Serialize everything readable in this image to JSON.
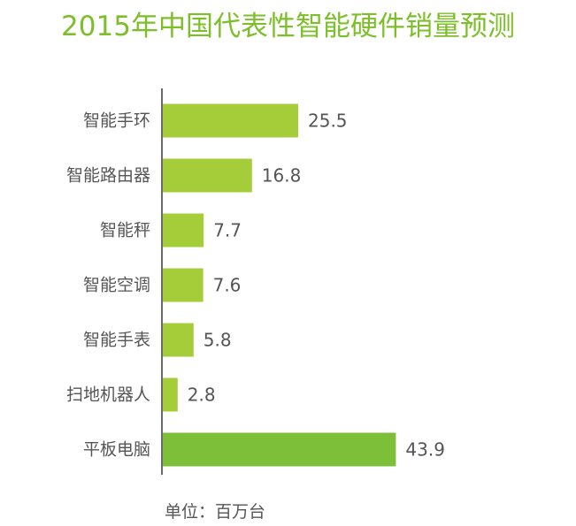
{
  "chart_data": {
    "type": "bar",
    "orientation": "horizontal",
    "title": "2015年中国代表性智能硬件销量预测",
    "unit_note": "单位：百万台",
    "categories": [
      "智能手环",
      "智能路由器",
      "智能秤",
      "智能空调",
      "智能手表",
      "扫地机器人",
      "平板电脑"
    ],
    "values": [
      25.5,
      16.8,
      7.7,
      7.6,
      5.8,
      2.8,
      43.9
    ],
    "value_labels": [
      "25.5",
      "16.8",
      "7.7",
      "7.6",
      "5.8",
      "2.8",
      "43.9"
    ],
    "xlim": [
      0,
      60
    ],
    "grid": false,
    "legend": "none",
    "colors": {
      "bar": "#a4cd39",
      "bar_highlight": "#7ebf3a",
      "title": "#7cbf29",
      "axis": "#3a3a3a",
      "text": "#555555"
    },
    "highlight_index": 6
  }
}
